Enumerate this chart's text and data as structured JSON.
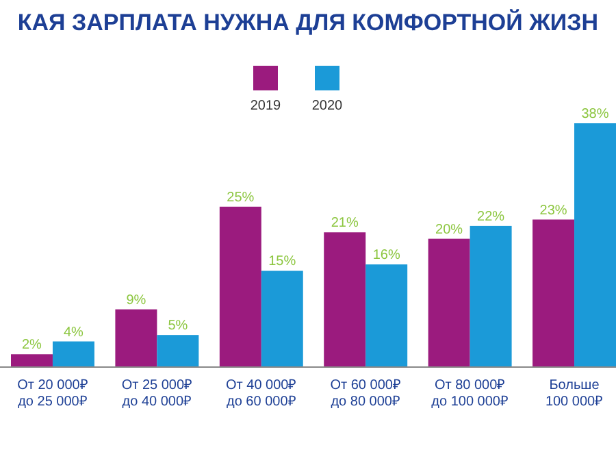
{
  "chart_data": {
    "type": "bar",
    "title": "КАЯ ЗАРПЛАТА НУЖНА ДЛЯ КОМФОРТНОЙ ЖИЗН",
    "categories": [
      "От 20 000₽\nдо 25 000₽",
      "От 25 000₽\nдо 40 000₽",
      "От 40 000₽\nдо 60 000₽",
      "От 60 000₽\nдо 80 000₽",
      "От 80 000₽\nдо 100 000₽",
      "Больше\n100 000₽"
    ],
    "series": [
      {
        "name": "2019",
        "color": "#9b1b7e",
        "values": [
          2,
          9,
          25,
          21,
          20,
          23
        ],
        "value_labels": [
          "2%",
          "9%",
          "25%",
          "21%",
          "20%",
          "23%"
        ]
      },
      {
        "name": "2020",
        "color": "#1b9ad8",
        "values": [
          4,
          5,
          15,
          16,
          22,
          38
        ],
        "value_labels": [
          "4%",
          "5%",
          "15%",
          "16%",
          "22%",
          "38%"
        ]
      }
    ],
    "legend": "top"
  }
}
